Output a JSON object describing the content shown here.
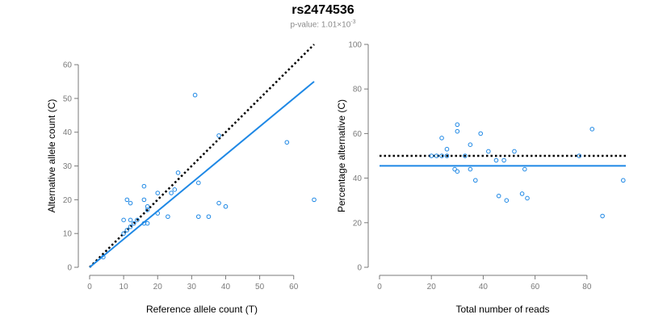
{
  "header": {
    "title": "rs2474536",
    "pvalue_prefix": "p-value: 1.01×10",
    "pvalue_exp": "-3"
  },
  "colors": {
    "series": "#1e88e5",
    "axis": "#7a7a7a",
    "reference": "#000000"
  },
  "chart_data": [
    {
      "type": "scatter",
      "xlabel": "Reference allele count (T)",
      "ylabel": "Alternative allele count (C)",
      "xlim": [
        0,
        66
      ],
      "ylim": [
        0,
        66
      ],
      "xticks": [
        0,
        10,
        20,
        30,
        40,
        50,
        60
      ],
      "yticks": [
        0,
        10,
        20,
        30,
        40,
        50,
        60
      ],
      "grid": false,
      "points": [
        [
          4,
          3
        ],
        [
          10,
          10
        ],
        [
          10,
          14
        ],
        [
          11,
          11
        ],
        [
          11,
          20
        ],
        [
          12,
          14
        ],
        [
          12,
          19
        ],
        [
          12,
          12
        ],
        [
          13,
          13
        ],
        [
          14,
          14
        ],
        [
          16,
          24
        ],
        [
          16,
          20
        ],
        [
          16,
          13
        ],
        [
          17,
          13
        ],
        [
          17,
          17
        ],
        [
          17,
          18
        ],
        [
          20,
          22
        ],
        [
          20,
          16
        ],
        [
          23,
          15
        ],
        [
          24,
          22
        ],
        [
          25,
          23
        ],
        [
          26,
          28
        ],
        [
          31,
          51
        ],
        [
          32,
          25
        ],
        [
          32,
          15
        ],
        [
          35,
          15
        ],
        [
          38,
          39
        ],
        [
          38,
          19
        ],
        [
          40,
          18
        ],
        [
          58,
          37
        ],
        [
          66,
          20
        ]
      ],
      "reference_line": {
        "style": "dotted",
        "points": [
          [
            0,
            0
          ],
          [
            66,
            66
          ]
        ]
      },
      "fit_line": {
        "points": [
          [
            0,
            0
          ],
          [
            66,
            55
          ]
        ]
      }
    },
    {
      "type": "scatter",
      "xlabel": "Total number of reads",
      "ylabel": "Percentage alternative (C)",
      "xlim": [
        0,
        95
      ],
      "ylim": [
        0,
        100
      ],
      "xticks": [
        0,
        20,
        40,
        60,
        80
      ],
      "yticks": [
        0,
        20,
        40,
        60,
        80,
        100
      ],
      "grid": false,
      "points": [
        [
          20,
          50
        ],
        [
          22,
          50
        ],
        [
          24,
          58
        ],
        [
          24,
          50
        ],
        [
          26,
          53
        ],
        [
          26,
          50
        ],
        [
          29,
          44
        ],
        [
          30,
          43
        ],
        [
          30,
          61
        ],
        [
          30,
          64
        ],
        [
          33,
          50
        ],
        [
          35,
          55
        ],
        [
          35,
          44
        ],
        [
          37,
          39
        ],
        [
          39,
          60
        ],
        [
          42,
          52
        ],
        [
          45,
          48
        ],
        [
          46,
          32
        ],
        [
          48,
          48
        ],
        [
          49,
          30
        ],
        [
          52,
          52
        ],
        [
          55,
          33
        ],
        [
          56,
          44
        ],
        [
          57,
          31
        ],
        [
          77,
          50
        ],
        [
          82,
          62
        ],
        [
          86,
          23
        ],
        [
          94,
          39
        ]
      ],
      "reference_line": {
        "style": "dotted",
        "y": 50
      },
      "fit_line": {
        "y": 45.5
      }
    }
  ]
}
